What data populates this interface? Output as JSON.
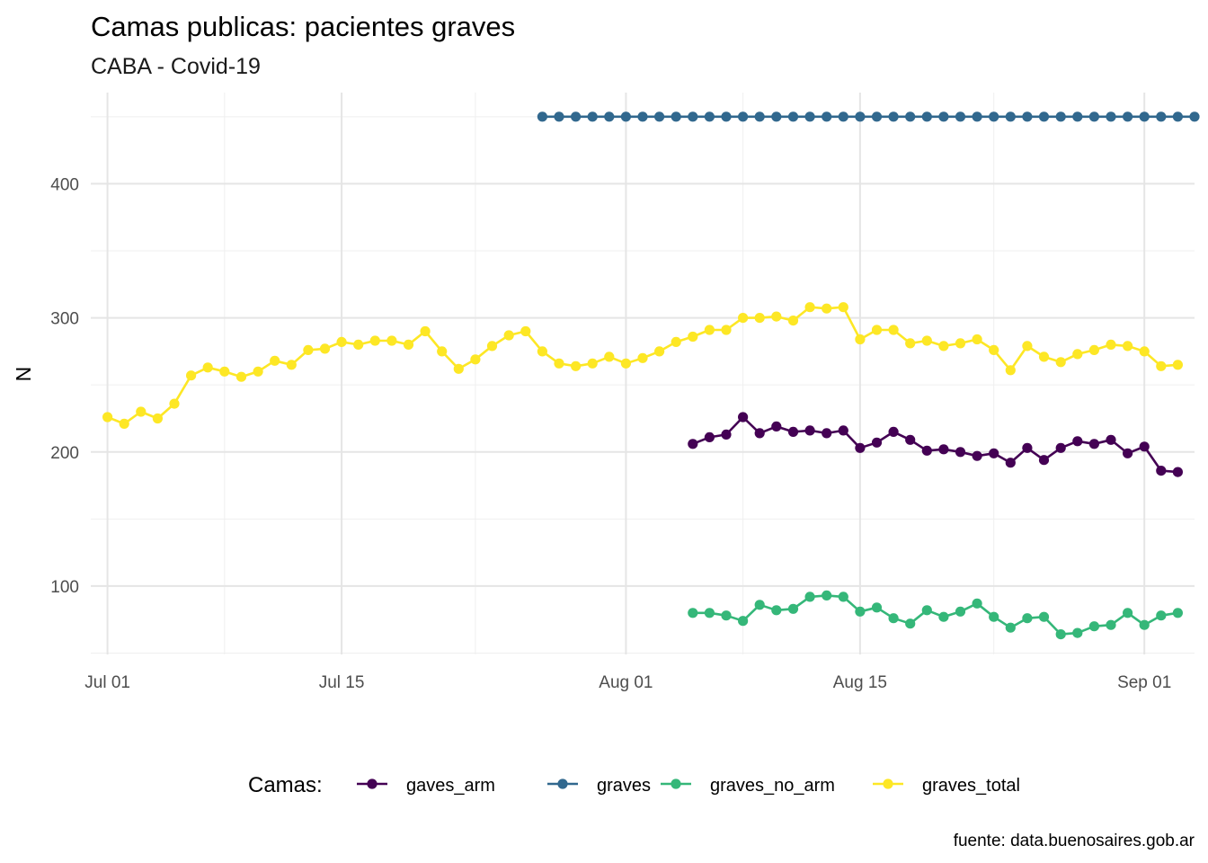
{
  "chart_data": {
    "type": "line",
    "title": "Camas publicas: pacientes graves",
    "subtitle": "CABA - Covid-19",
    "xlabel": "",
    "ylabel": "N",
    "caption": "fuente: data.buenosaires.gob.ar",
    "x_range": [
      "2020-06-30",
      "2020-09-04"
    ],
    "ylim": [
      49,
      468
    ],
    "x_ticks": [
      {
        "date": "2020-07-01",
        "label": "Jul 01"
      },
      {
        "date": "2020-07-15",
        "label": "Jul 15"
      },
      {
        "date": "2020-08-01",
        "label": "Aug 01"
      },
      {
        "date": "2020-08-15",
        "label": "Aug 15"
      },
      {
        "date": "2020-09-01",
        "label": "Sep 01"
      }
    ],
    "x_minor_ticks": [
      "2020-07-08",
      "2020-07-23",
      "2020-08-08",
      "2020-08-23"
    ],
    "y_ticks": [
      100,
      200,
      300,
      400
    ],
    "y_minor_ticks": [
      50,
      150,
      250,
      350,
      450
    ],
    "grid": true,
    "legend": {
      "title": "Camas:",
      "position": "bottom"
    },
    "series": [
      {
        "name": "gaves_arm",
        "color": "#440154",
        "start": "2020-08-05",
        "values": [
          206,
          211,
          213,
          226,
          214,
          219,
          215,
          216,
          214,
          216,
          203,
          207,
          215,
          209,
          201,
          202,
          200,
          197,
          199,
          192,
          203,
          194,
          203,
          208,
          206,
          209,
          199,
          204,
          186,
          185
        ]
      },
      {
        "name": "graves",
        "color": "#31688e",
        "start": "2020-07-27",
        "values": [
          450,
          450,
          450,
          450,
          450,
          450,
          450,
          450,
          450,
          450,
          450,
          450,
          450,
          450,
          450,
          450,
          450,
          450,
          450,
          450,
          450,
          450,
          450,
          450,
          450,
          450,
          450,
          450,
          450,
          450,
          450,
          450,
          450,
          450,
          450,
          450,
          450,
          450,
          450,
          450
        ]
      },
      {
        "name": "graves_no_arm",
        "color": "#35b779",
        "start": "2020-08-05",
        "values": [
          80,
          80,
          78,
          74,
          86,
          82,
          83,
          92,
          93,
          92,
          81,
          84,
          76,
          72,
          82,
          77,
          81,
          87,
          77,
          69,
          76,
          77,
          64,
          65,
          70,
          71,
          80,
          71,
          78,
          80
        ]
      },
      {
        "name": "graves_total",
        "color": "#fde725",
        "start": "2020-07-01",
        "values": [
          226,
          221,
          230,
          225,
          236,
          257,
          263,
          260,
          256,
          260,
          268,
          265,
          276,
          277,
          282,
          280,
          283,
          283,
          280,
          290,
          275,
          262,
          269,
          279,
          287,
          290,
          275,
          266,
          264,
          266,
          271,
          266,
          270,
          275,
          282,
          286,
          291,
          291,
          300,
          300,
          301,
          298,
          308,
          307,
          308,
          284,
          291,
          291,
          281,
          283,
          279,
          281,
          284,
          276,
          261,
          279,
          271,
          267,
          273,
          276,
          280,
          279,
          275,
          264,
          265
        ]
      }
    ]
  }
}
